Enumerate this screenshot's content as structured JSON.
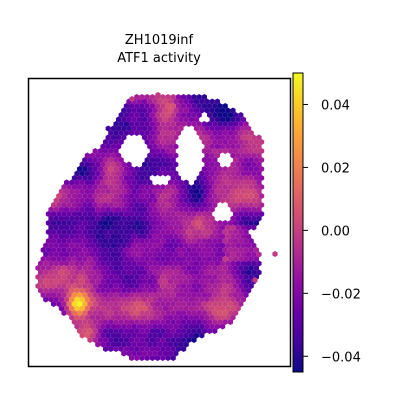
{
  "chart_data": {
    "type": "heatmap",
    "title_line1": "ZH1019inf",
    "title_line2": "ATF1 activity",
    "colormap": "plasma",
    "colorbar": {
      "vmin": -0.045,
      "vmax": 0.05,
      "ticks": [
        0.04,
        0.02,
        0.0,
        -0.02,
        -0.04
      ],
      "tick_labels": [
        "0.04",
        "0.02",
        "0.00",
        "−0.02",
        "−0.04"
      ]
    },
    "grid": false,
    "axes_visible": false,
    "description_values": {
      "typical_range": [
        -0.035,
        0.01
      ],
      "hotspot_value": 0.045,
      "hotspot_location": "lower-left edge"
    }
  }
}
